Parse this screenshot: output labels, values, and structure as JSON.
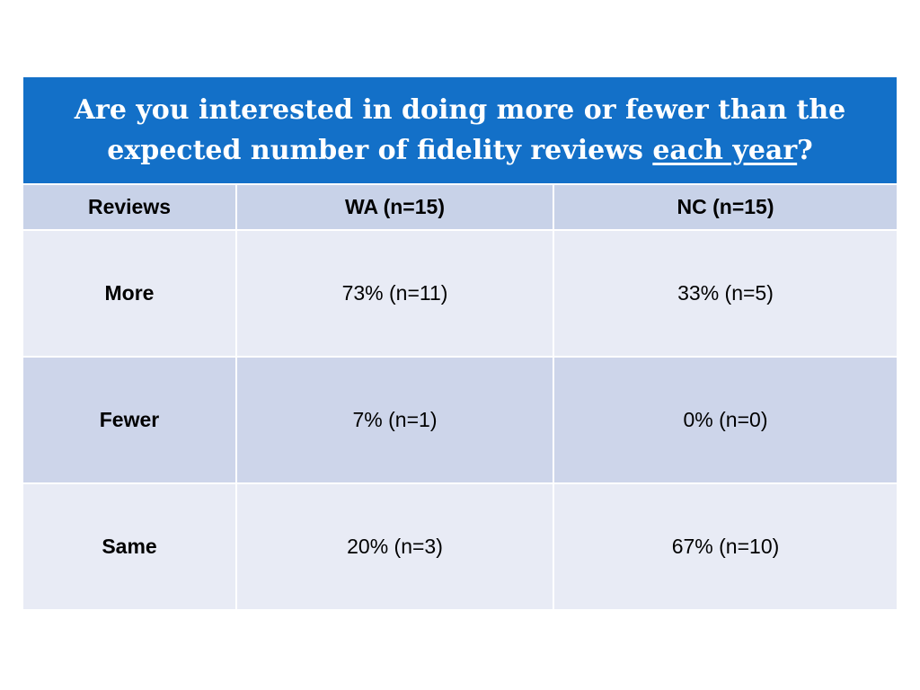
{
  "table": {
    "title": {
      "line1": "Are you interested in doing more or fewer than the",
      "line2_before": "expected number of fidelity reviews ",
      "line2_emphasis": "each year",
      "line2_after": "?"
    },
    "headers": [
      "Reviews",
      "WA (n=15)",
      "NC (n=15)"
    ],
    "rows": [
      {
        "label": "More",
        "wa": "73% (n=11)",
        "nc": "33% (n=5)"
      },
      {
        "label": "Fewer",
        "wa": "7% (n=1)",
        "nc": "0% (n=0)"
      },
      {
        "label": "Same",
        "wa": "20% (n=3)",
        "nc": "67% (n=10)"
      }
    ]
  },
  "colors": {
    "title_background": "#1370c8",
    "header_background": "#c8d2e8",
    "row_light": "#e8ebf5",
    "row_dark": "#cdd5ea"
  }
}
